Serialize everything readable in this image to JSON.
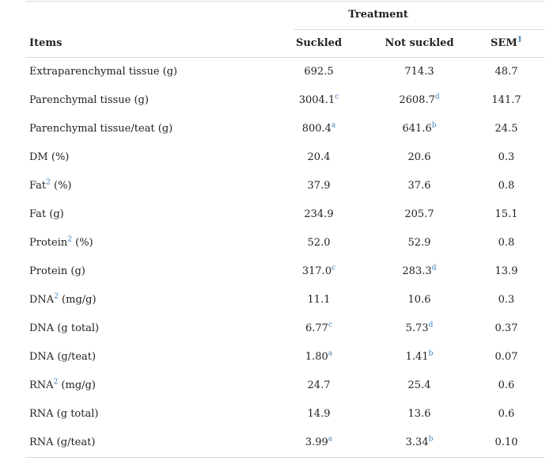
{
  "header": {
    "treatment": "Treatment",
    "items": "Items",
    "suckled": "Suckled",
    "not_suckled": "Not suckled",
    "sem": "SEM",
    "sem_sup": "1"
  },
  "rows": [
    {
      "label": "Extraparenchymal tissue (g)",
      "label_sup": "",
      "label_rest": "",
      "s": "692.5",
      "s_sup": "",
      "n": "714.3",
      "n_sup": "",
      "sem": "48.7"
    },
    {
      "label": "Parenchymal tissue (g)",
      "label_sup": "",
      "label_rest": "",
      "s": "3004.1",
      "s_sup": "c",
      "n": "2608.7",
      "n_sup": "d",
      "sem": "141.7"
    },
    {
      "label": "Parenchymal tissue/teat (g)",
      "label_sup": "",
      "label_rest": "",
      "s": "800.4",
      "s_sup": "a",
      "n": "641.6",
      "n_sup": "b",
      "sem": "24.5"
    },
    {
      "label": "DM (%)",
      "label_sup": "",
      "label_rest": "",
      "s": "20.4",
      "s_sup": "",
      "n": "20.6",
      "n_sup": "",
      "sem": "0.3"
    },
    {
      "label": "Fat",
      "label_sup": "2",
      "label_rest": " (%)",
      "s": "37.9",
      "s_sup": "",
      "n": "37.6",
      "n_sup": "",
      "sem": "0.8"
    },
    {
      "label": "Fat (g)",
      "label_sup": "",
      "label_rest": "",
      "s": "234.9",
      "s_sup": "",
      "n": "205.7",
      "n_sup": "",
      "sem": "15.1"
    },
    {
      "label": "Protein",
      "label_sup": "2",
      "label_rest": " (%)",
      "s": "52.0",
      "s_sup": "",
      "n": "52.9",
      "n_sup": "",
      "sem": "0.8"
    },
    {
      "label": "Protein (g)",
      "label_sup": "",
      "label_rest": "",
      "s": "317.0",
      "s_sup": "c",
      "n": "283.3",
      "n_sup": "d",
      "sem": "13.9"
    },
    {
      "label": "DNA",
      "label_sup": "2",
      "label_rest": " (mg/g)",
      "s": "11.1",
      "s_sup": "",
      "n": "10.6",
      "n_sup": "",
      "sem": "0.3"
    },
    {
      "label": "DNA (g total)",
      "label_sup": "",
      "label_rest": "",
      "s": "6.77",
      "s_sup": "c",
      "n": "5.73",
      "n_sup": "d",
      "sem": "0.37"
    },
    {
      "label": "DNA (g/teat)",
      "label_sup": "",
      "label_rest": "",
      "s": "1.80",
      "s_sup": "a",
      "n": "1.41",
      "n_sup": "b",
      "sem": "0.07"
    },
    {
      "label": "RNA",
      "label_sup": "2",
      "label_rest": " (mg/g)",
      "s": "24.7",
      "s_sup": "",
      "n": "25.4",
      "n_sup": "",
      "sem": "0.6"
    },
    {
      "label": "RNA (g total)",
      "label_sup": "",
      "label_rest": "",
      "s": "14.9",
      "s_sup": "",
      "n": "13.6",
      "n_sup": "",
      "sem": "0.6"
    },
    {
      "label": "RNA (g/teat)",
      "label_sup": "",
      "label_rest": "",
      "s": "3.99",
      "s_sup": "a",
      "n": "3.34",
      "n_sup": "b",
      "sem": "0.10"
    }
  ]
}
